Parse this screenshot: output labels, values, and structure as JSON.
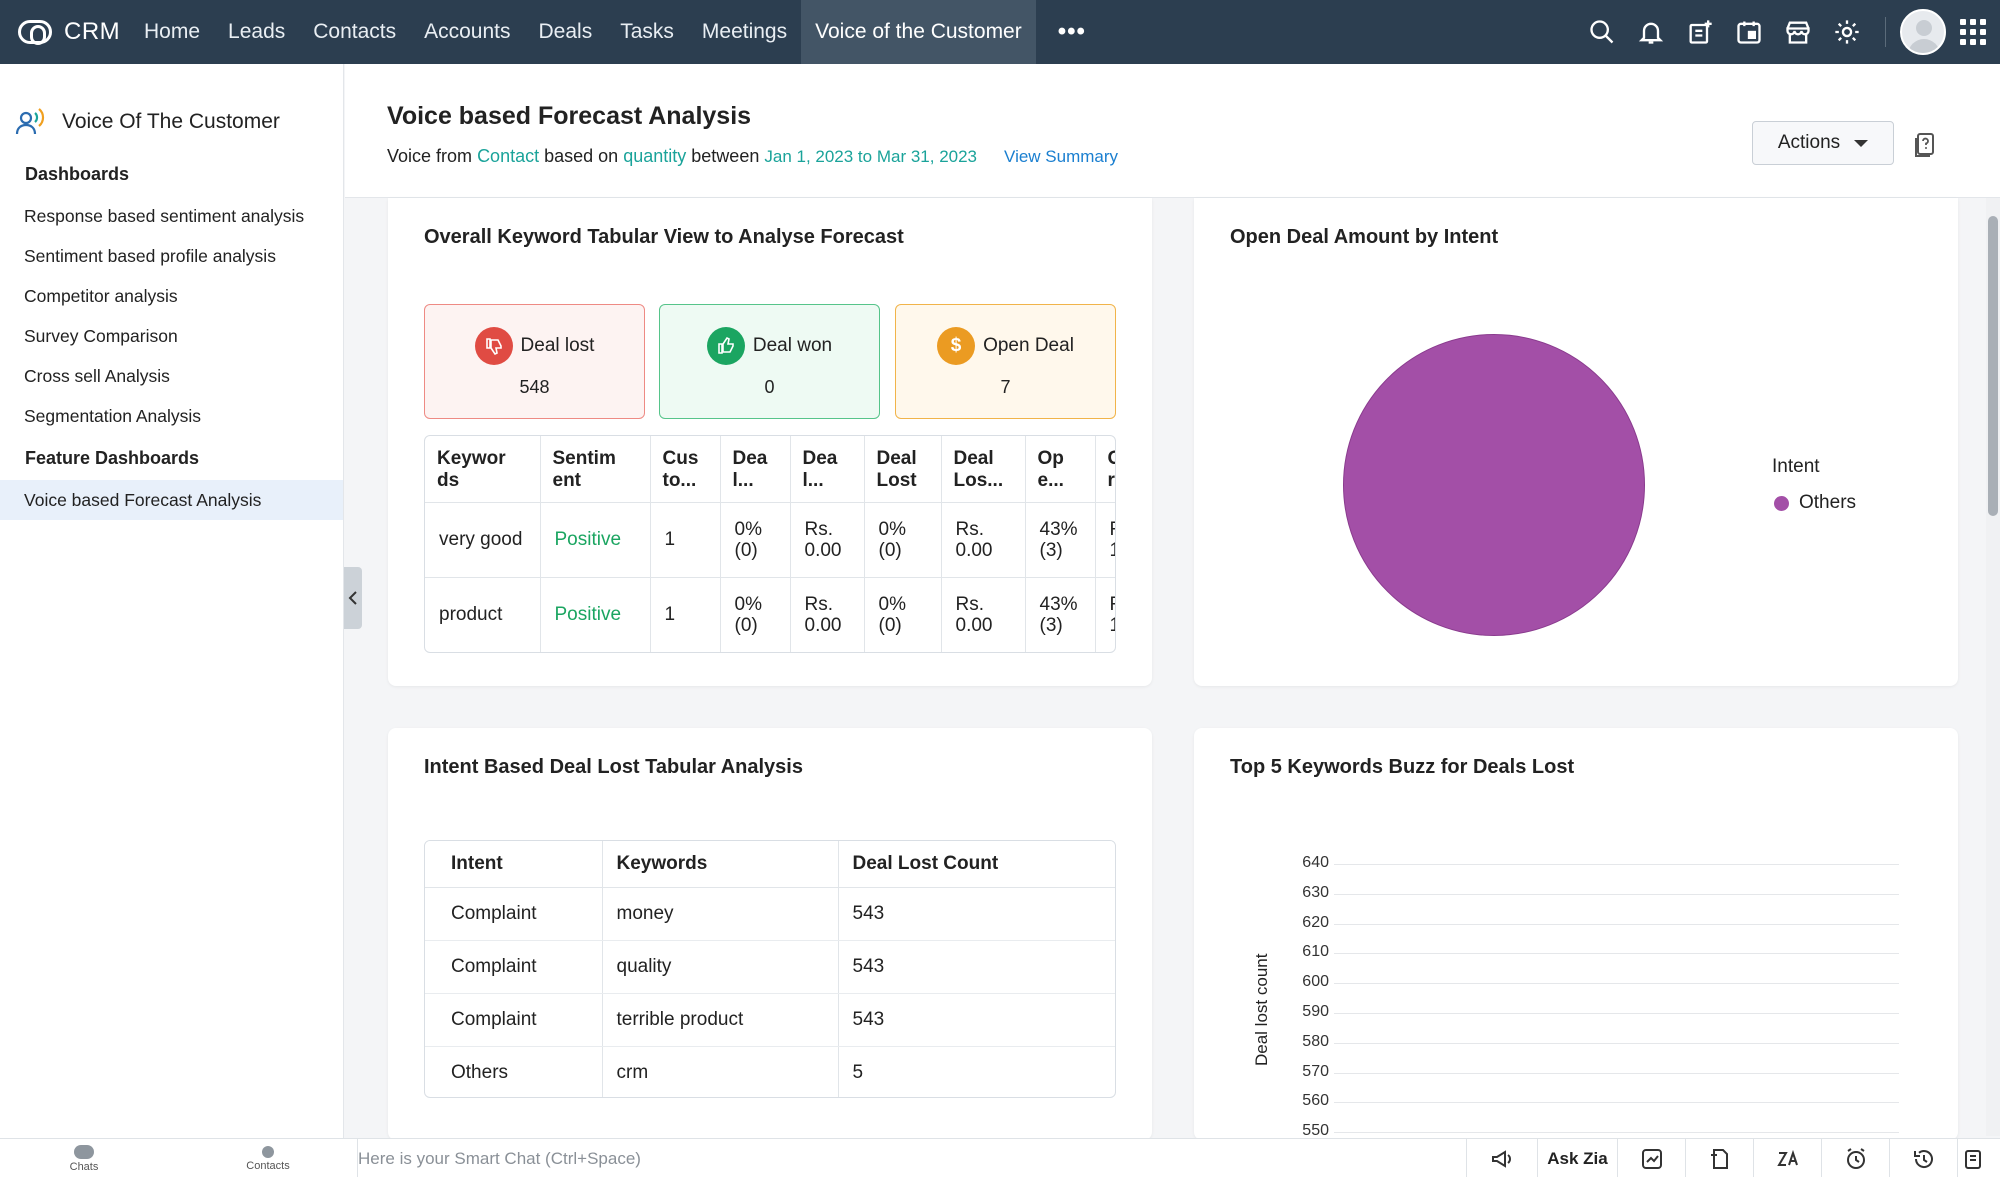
{
  "app": {
    "name": "CRM"
  },
  "nav": {
    "tabs": [
      "Home",
      "Leads",
      "Contacts",
      "Accounts",
      "Deals",
      "Tasks",
      "Meetings",
      "Voice of the Customer"
    ],
    "more": "•••",
    "icons": [
      "search-icon",
      "bell-icon",
      "add-note-icon",
      "calendar-icon",
      "marketplace-icon",
      "settings-icon"
    ]
  },
  "sidebar": {
    "title": "Voice Of The Customer",
    "section_dashboards": "Dashboards",
    "dashboards": [
      "Response based sentiment analysis",
      "Sentiment based profile analysis",
      "Competitor analysis",
      "Survey Comparison",
      "Cross sell Analysis",
      "Segmentation Analysis"
    ],
    "section_feature": "Feature Dashboards",
    "feature": [
      "Voice based Forecast Analysis"
    ]
  },
  "header": {
    "title": "Voice based Forecast Analysis",
    "sub_voice_from": "Voice from",
    "sub_contact": "Contact",
    "sub_based_on": "based on",
    "sub_quantity": "quantity",
    "sub_between": "between",
    "sub_dates": "Jan 1, 2023 to Mar 31, 2023",
    "view_summary": "View Summary",
    "actions": "Actions"
  },
  "keyword_card": {
    "title": "Overall Keyword Tabular View to Analyse Forecast",
    "stats": {
      "lost": {
        "label": "Deal lost",
        "value": "548"
      },
      "won": {
        "label": "Deal won",
        "value": "0"
      },
      "open": {
        "label": "Open Deal",
        "value": "7",
        "symbol": "$"
      }
    },
    "columns": [
      "Keywor ds",
      "Sentim ent",
      "Cus to...",
      "Dea l...",
      "Dea l...",
      "Deal Lost",
      "Deal Los...",
      "Op e...",
      "O r"
    ],
    "rows": [
      [
        "very good",
        "Positive",
        "1",
        "0% (0)",
        "Rs. 0.00",
        "0% (0)",
        "Rs. 0.00",
        "43% (3)",
        "R 1"
      ],
      [
        "product",
        "Positive",
        "1",
        "0% (0)",
        "Rs. 0.00",
        "0% (0)",
        "Rs. 0.00",
        "43% (3)",
        "R 1"
      ]
    ]
  },
  "pie_card": {
    "title": "Open Deal Amount by Intent",
    "legend_title": "Intent"
  },
  "intent_card": {
    "title": "Intent Based Deal Lost Tabular Analysis",
    "columns": [
      "Intent",
      "Keywords",
      "Deal Lost Count"
    ],
    "rows": [
      [
        "Complaint",
        "money",
        "543"
      ],
      [
        "Complaint",
        "quality",
        "543"
      ],
      [
        "Complaint",
        "terrible product",
        "543"
      ],
      [
        "Others",
        "crm",
        "5"
      ]
    ]
  },
  "bar_card": {
    "title": "Top 5 Keywords Buzz for Deals Lost"
  },
  "chart_data": [
    {
      "type": "pie",
      "title": "Open Deal Amount by Intent",
      "legend_title": "Intent",
      "slices": [
        {
          "label": "Others",
          "value": 100,
          "color": "#a34fa7"
        }
      ]
    },
    {
      "type": "bar",
      "title": "Top 5 Keywords Buzz for Deals Lost",
      "ylabel": "Deal lost count",
      "yticks": [
        640,
        630,
        620,
        610,
        600,
        590,
        580,
        570,
        560,
        550
      ],
      "ylim": [
        550,
        640
      ],
      "categories": [],
      "values": []
    }
  ],
  "bottombar": {
    "chats": "Chats",
    "contacts": "Contacts",
    "smartchat": "Here is your Smart Chat (Ctrl+Space)",
    "ask_zia": "Ask Zia"
  }
}
